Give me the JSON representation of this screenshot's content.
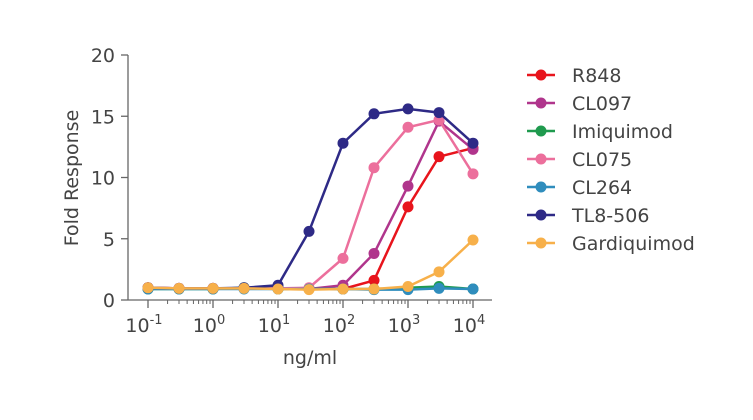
{
  "chart_data": {
    "type": "line",
    "xlabel": "ng/ml",
    "ylabel": "Fold Response",
    "x_scale": "log",
    "xlim": [
      0.1,
      10000
    ],
    "ylim": [
      0,
      20
    ],
    "y_ticks": [
      "0",
      "5",
      "10",
      "15",
      "20"
    ],
    "y_tick_values": [
      0,
      5,
      10,
      15,
      20
    ],
    "x_tick_exponents": [
      "-1",
      "0",
      "1",
      "2",
      "3",
      "4"
    ],
    "x_tick_base": "10",
    "legend_position": "right",
    "x": [
      0.1,
      0.3,
      1,
      3,
      10,
      30,
      100,
      300,
      1000,
      3000,
      10000
    ],
    "series": [
      {
        "name": "R848",
        "color": "#e8141c",
        "values": [
          1.0,
          0.95,
          0.95,
          0.95,
          0.95,
          0.9,
          0.9,
          1.6,
          7.6,
          11.7,
          12.4
        ]
      },
      {
        "name": "CL097",
        "color": "#b0358c",
        "values": [
          1.0,
          0.95,
          0.95,
          0.95,
          0.95,
          0.9,
          1.2,
          3.8,
          9.3,
          14.6,
          12.3
        ]
      },
      {
        "name": "Imiquimod",
        "color": "#1f9a4e",
        "values": [
          0.9,
          0.9,
          0.9,
          1.0,
          0.9,
          0.9,
          0.9,
          0.9,
          1.0,
          1.1,
          0.9
        ]
      },
      {
        "name": "CL075",
        "color": "#ec6f9c",
        "values": [
          1.0,
          0.95,
          0.95,
          0.95,
          0.95,
          1.0,
          3.4,
          10.8,
          14.1,
          14.7,
          10.3
        ]
      },
      {
        "name": "CL264",
        "color": "#2f8dbd",
        "values": [
          0.9,
          0.9,
          0.9,
          0.9,
          0.9,
          0.9,
          0.9,
          0.85,
          0.85,
          0.95,
          0.9
        ]
      },
      {
        "name": "TL8-506",
        "color": "#2e2a86",
        "values": [
          1.0,
          0.95,
          0.95,
          1.0,
          1.2,
          5.6,
          12.8,
          15.2,
          15.6,
          15.3,
          12.8
        ]
      },
      {
        "name": "Gardiquimod",
        "color": "#f7b04a",
        "values": [
          1.0,
          0.95,
          0.95,
          0.95,
          0.9,
          0.85,
          0.9,
          0.9,
          1.1,
          2.3,
          4.9
        ]
      }
    ]
  }
}
